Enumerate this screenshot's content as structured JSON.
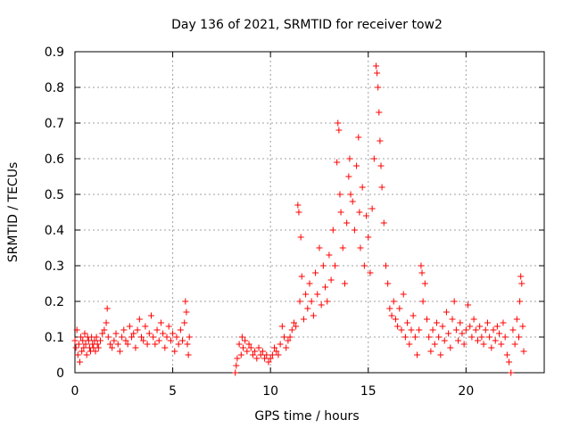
{
  "chart_data": {
    "type": "scatter",
    "title": "Day 136 of 2021, SRMTID for receiver tow2",
    "xlabel": "GPS time / hours",
    "ylabel": "SRMTID / TECUs",
    "xlim": [
      0,
      24
    ],
    "ylim": [
      0,
      0.9
    ],
    "xticks": [
      0,
      5,
      10,
      15,
      20
    ],
    "xtick_labels": [
      "0",
      "5",
      "10",
      "15",
      "20"
    ],
    "yticks": [
      0,
      0.1,
      0.2,
      0.3,
      0.4,
      0.5,
      0.6,
      0.7,
      0.8,
      0.9
    ],
    "ytick_labels": [
      "0",
      "0.1",
      "0.2",
      "0.3",
      "0.4",
      "0.5",
      "0.6",
      "0.7",
      "0.8",
      "0.9"
    ],
    "grid": true,
    "marker": "+",
    "color": "#ff0000",
    "series": [
      {
        "name": "SRMTID",
        "points": [
          [
            0.0,
            0.09
          ],
          [
            0.05,
            0.07
          ],
          [
            0.1,
            0.12
          ],
          [
            0.15,
            0.05
          ],
          [
            0.2,
            0.08
          ],
          [
            0.25,
            0.03
          ],
          [
            0.3,
            0.1
          ],
          [
            0.35,
            0.06
          ],
          [
            0.4,
            0.09
          ],
          [
            0.45,
            0.07
          ],
          [
            0.5,
            0.11
          ],
          [
            0.55,
            0.08
          ],
          [
            0.6,
            0.05
          ],
          [
            0.65,
            0.1
          ],
          [
            0.7,
            0.09
          ],
          [
            0.75,
            0.07
          ],
          [
            0.8,
            0.06
          ],
          [
            0.85,
            0.1
          ],
          [
            0.9,
            0.08
          ],
          [
            0.95,
            0.07
          ],
          [
            1.0,
            0.09
          ],
          [
            1.05,
            0.06
          ],
          [
            1.1,
            0.1
          ],
          [
            1.15,
            0.08
          ],
          [
            1.2,
            0.07
          ],
          [
            1.3,
            0.09
          ],
          [
            1.4,
            0.11
          ],
          [
            1.5,
            0.12
          ],
          [
            1.6,
            0.14
          ],
          [
            1.65,
            0.18
          ],
          [
            1.7,
            0.1
          ],
          [
            1.8,
            0.08
          ],
          [
            1.9,
            0.07
          ],
          [
            2.0,
            0.09
          ],
          [
            2.1,
            0.11
          ],
          [
            2.2,
            0.08
          ],
          [
            2.3,
            0.06
          ],
          [
            2.4,
            0.1
          ],
          [
            2.5,
            0.12
          ],
          [
            2.6,
            0.09
          ],
          [
            2.7,
            0.08
          ],
          [
            2.8,
            0.13
          ],
          [
            2.9,
            0.1
          ],
          [
            3.0,
            0.11
          ],
          [
            3.1,
            0.07
          ],
          [
            3.2,
            0.12
          ],
          [
            3.3,
            0.15
          ],
          [
            3.4,
            0.1
          ],
          [
            3.5,
            0.09
          ],
          [
            3.6,
            0.13
          ],
          [
            3.7,
            0.08
          ],
          [
            3.8,
            0.11
          ],
          [
            3.9,
            0.16
          ],
          [
            4.0,
            0.1
          ],
          [
            4.1,
            0.08
          ],
          [
            4.2,
            0.12
          ],
          [
            4.3,
            0.09
          ],
          [
            4.4,
            0.14
          ],
          [
            4.5,
            0.11
          ],
          [
            4.6,
            0.07
          ],
          [
            4.7,
            0.1
          ],
          [
            4.8,
            0.13
          ],
          [
            4.9,
            0.09
          ],
          [
            5.0,
            0.11
          ],
          [
            5.1,
            0.06
          ],
          [
            5.2,
            0.1
          ],
          [
            5.3,
            0.08
          ],
          [
            5.4,
            0.12
          ],
          [
            5.5,
            0.09
          ],
          [
            5.6,
            0.14
          ],
          [
            5.65,
            0.2
          ],
          [
            5.7,
            0.17
          ],
          [
            5.75,
            0.08
          ],
          [
            5.8,
            0.05
          ],
          [
            5.85,
            0.1
          ],
          [
            8.2,
            0.0
          ],
          [
            8.25,
            0.02
          ],
          [
            8.3,
            0.04
          ],
          [
            8.4,
            0.08
          ],
          [
            8.5,
            0.05
          ],
          [
            8.55,
            0.1
          ],
          [
            8.6,
            0.07
          ],
          [
            8.7,
            0.09
          ],
          [
            8.8,
            0.06
          ],
          [
            8.9,
            0.08
          ],
          [
            9.0,
            0.07
          ],
          [
            9.1,
            0.05
          ],
          [
            9.2,
            0.06
          ],
          [
            9.3,
            0.04
          ],
          [
            9.4,
            0.07
          ],
          [
            9.5,
            0.05
          ],
          [
            9.6,
            0.06
          ],
          [
            9.7,
            0.04
          ],
          [
            9.8,
            0.05
          ],
          [
            9.9,
            0.03
          ],
          [
            10.0,
            0.04
          ],
          [
            10.1,
            0.05
          ],
          [
            10.2,
            0.07
          ],
          [
            10.3,
            0.06
          ],
          [
            10.4,
            0.05
          ],
          [
            10.5,
            0.08
          ],
          [
            10.6,
            0.13
          ],
          [
            10.7,
            0.1
          ],
          [
            10.8,
            0.07
          ],
          [
            10.9,
            0.09
          ],
          [
            11.0,
            0.1
          ],
          [
            11.1,
            0.12
          ],
          [
            11.2,
            0.14
          ],
          [
            11.3,
            0.13
          ],
          [
            11.4,
            0.47
          ],
          [
            11.45,
            0.45
          ],
          [
            11.5,
            0.2
          ],
          [
            11.55,
            0.38
          ],
          [
            11.6,
            0.27
          ],
          [
            11.7,
            0.15
          ],
          [
            11.8,
            0.22
          ],
          [
            11.9,
            0.18
          ],
          [
            12.0,
            0.25
          ],
          [
            12.1,
            0.2
          ],
          [
            12.2,
            0.16
          ],
          [
            12.3,
            0.28
          ],
          [
            12.4,
            0.22
          ],
          [
            12.5,
            0.35
          ],
          [
            12.6,
            0.19
          ],
          [
            12.7,
            0.3
          ],
          [
            12.8,
            0.24
          ],
          [
            12.9,
            0.2
          ],
          [
            13.0,
            0.33
          ],
          [
            13.1,
            0.26
          ],
          [
            13.2,
            0.4
          ],
          [
            13.3,
            0.3
          ],
          [
            13.4,
            0.59
          ],
          [
            13.45,
            0.7
          ],
          [
            13.5,
            0.68
          ],
          [
            13.55,
            0.5
          ],
          [
            13.6,
            0.45
          ],
          [
            13.7,
            0.35
          ],
          [
            13.8,
            0.25
          ],
          [
            13.9,
            0.42
          ],
          [
            14.0,
            0.55
          ],
          [
            14.05,
            0.6
          ],
          [
            14.1,
            0.5
          ],
          [
            14.2,
            0.48
          ],
          [
            14.3,
            0.4
          ],
          [
            14.4,
            0.58
          ],
          [
            14.5,
            0.66
          ],
          [
            14.55,
            0.45
          ],
          [
            14.6,
            0.35
          ],
          [
            14.7,
            0.52
          ],
          [
            14.8,
            0.3
          ],
          [
            14.9,
            0.44
          ],
          [
            15.0,
            0.38
          ],
          [
            15.1,
            0.28
          ],
          [
            15.2,
            0.46
          ],
          [
            15.3,
            0.6
          ],
          [
            15.4,
            0.86
          ],
          [
            15.45,
            0.84
          ],
          [
            15.5,
            0.8
          ],
          [
            15.55,
            0.73
          ],
          [
            15.6,
            0.65
          ],
          [
            15.65,
            0.58
          ],
          [
            15.7,
            0.52
          ],
          [
            15.8,
            0.42
          ],
          [
            15.9,
            0.3
          ],
          [
            16.0,
            0.25
          ],
          [
            16.1,
            0.18
          ],
          [
            16.2,
            0.16
          ],
          [
            16.3,
            0.2
          ],
          [
            16.4,
            0.15
          ],
          [
            16.5,
            0.13
          ],
          [
            16.6,
            0.18
          ],
          [
            16.7,
            0.12
          ],
          [
            16.8,
            0.22
          ],
          [
            16.9,
            0.1
          ],
          [
            17.0,
            0.14
          ],
          [
            17.1,
            0.08
          ],
          [
            17.2,
            0.12
          ],
          [
            17.3,
            0.16
          ],
          [
            17.4,
            0.1
          ],
          [
            17.5,
            0.05
          ],
          [
            17.6,
            0.12
          ],
          [
            17.7,
            0.3
          ],
          [
            17.75,
            0.28
          ],
          [
            17.8,
            0.2
          ],
          [
            17.9,
            0.25
          ],
          [
            18.0,
            0.15
          ],
          [
            18.1,
            0.1
          ],
          [
            18.2,
            0.06
          ],
          [
            18.3,
            0.12
          ],
          [
            18.4,
            0.08
          ],
          [
            18.5,
            0.14
          ],
          [
            18.6,
            0.1
          ],
          [
            18.7,
            0.05
          ],
          [
            18.8,
            0.13
          ],
          [
            18.9,
            0.09
          ],
          [
            19.0,
            0.17
          ],
          [
            19.1,
            0.11
          ],
          [
            19.2,
            0.07
          ],
          [
            19.3,
            0.15
          ],
          [
            19.4,
            0.2
          ],
          [
            19.5,
            0.12
          ],
          [
            19.6,
            0.09
          ],
          [
            19.7,
            0.14
          ],
          [
            19.8,
            0.11
          ],
          [
            19.9,
            0.08
          ],
          [
            20.0,
            0.12
          ],
          [
            20.1,
            0.19
          ],
          [
            20.2,
            0.13
          ],
          [
            20.3,
            0.1
          ],
          [
            20.4,
            0.15
          ],
          [
            20.5,
            0.12
          ],
          [
            20.6,
            0.09
          ],
          [
            20.7,
            0.13
          ],
          [
            20.8,
            0.1
          ],
          [
            20.9,
            0.08
          ],
          [
            21.0,
            0.12
          ],
          [
            21.1,
            0.14
          ],
          [
            21.2,
            0.1
          ],
          [
            21.3,
            0.07
          ],
          [
            21.4,
            0.12
          ],
          [
            21.5,
            0.09
          ],
          [
            21.6,
            0.13
          ],
          [
            21.7,
            0.11
          ],
          [
            21.8,
            0.08
          ],
          [
            21.9,
            0.14
          ],
          [
            22.0,
            0.1
          ],
          [
            22.1,
            0.05
          ],
          [
            22.2,
            0.03
          ],
          [
            22.3,
            0.0
          ],
          [
            22.4,
            0.12
          ],
          [
            22.5,
            0.08
          ],
          [
            22.6,
            0.15
          ],
          [
            22.7,
            0.1
          ],
          [
            22.75,
            0.2
          ],
          [
            22.8,
            0.27
          ],
          [
            22.85,
            0.25
          ],
          [
            22.9,
            0.13
          ],
          [
            22.95,
            0.06
          ]
        ]
      }
    ]
  }
}
